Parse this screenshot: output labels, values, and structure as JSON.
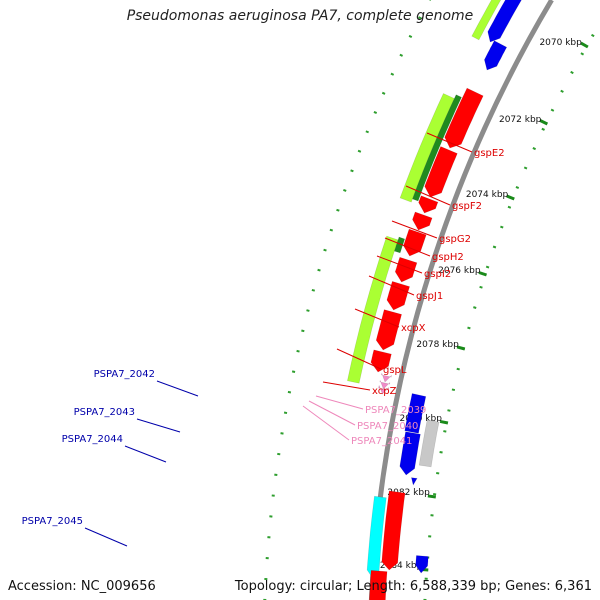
{
  "title": "Pseudomonas aeruginosa PA7, complete genome",
  "footer": {
    "accession": "Accession: NC_009656",
    "summary": "Topology: circular; Length: 6,588,339 bp; Genes: 6,361"
  },
  "colors": {
    "backbone": "#8c8c8c",
    "tick_major": "#1a8a1a",
    "tick_minor": "#2e9e2e",
    "gene_red": "#ff0000",
    "gene_green_dark": "#1f8a1f",
    "gene_green_light": "#aaff33",
    "gene_blue": "#0000ee",
    "gene_grey": "#c8c8c8",
    "gene_cyan": "#00ffff",
    "gene_pink": "#f08cc8",
    "label_red": "#dd0000",
    "label_blue": "#0000aa",
    "label_pink": "#ee88bb"
  },
  "kbp_labels": [
    "2070 kbp",
    "2072 kbp",
    "2074 kbp",
    "2076 kbp",
    "2078 kbp",
    "2080 kbp",
    "2082 kbp",
    "2084 kbp"
  ],
  "gene_labels_right": [
    {
      "text": "gspE2",
      "color": "label_red"
    },
    {
      "text": "gspF2",
      "color": "label_red"
    },
    {
      "text": "gspG2",
      "color": "label_red"
    },
    {
      "text": "gspH2",
      "color": "label_red"
    },
    {
      "text": "gspI2",
      "color": "label_red"
    },
    {
      "text": "gspJ1",
      "color": "label_red"
    },
    {
      "text": "xcpX",
      "color": "label_red"
    },
    {
      "text": "gspL",
      "color": "label_red"
    },
    {
      "text": "xcpZ",
      "color": "label_red"
    },
    {
      "text": "PSPA7_2039",
      "color": "label_pink"
    },
    {
      "text": "PSPA7_2040",
      "color": "label_pink"
    },
    {
      "text": "PSPA7_2041",
      "color": "label_pink"
    }
  ],
  "gene_labels_left": [
    {
      "text": "PSPA7_2042",
      "color": "label_blue"
    },
    {
      "text": "PSPA7_2043",
      "color": "label_blue"
    },
    {
      "text": "PSPA7_2044",
      "color": "label_blue"
    },
    {
      "text": "PSPA7_2045",
      "color": "label_blue"
    }
  ]
}
